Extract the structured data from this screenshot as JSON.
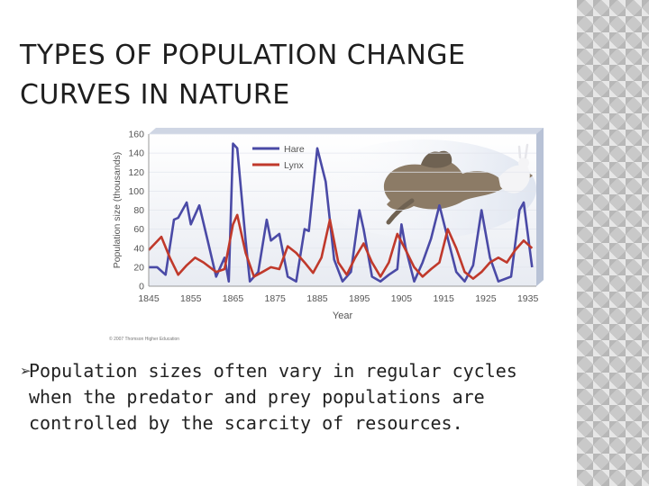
{
  "slide": {
    "title_line1": "TYPES OF POPULATION CHANGE",
    "title_line2": "CURVES IN NATURE",
    "bullet_marker": "➢",
    "bullet_text": "Population sizes often vary in regular cycles when the predator and prey populations are controlled by the scarcity of resources."
  },
  "image_icons": [
    "lynx-chasing-hare-illustration"
  ],
  "chart_data": {
    "type": "line",
    "ylabel": "Population size (thousands)",
    "xlabel": "Year",
    "copyright": "© 2007 Thomson Higher Education",
    "xlim": [
      1845,
      1937
    ],
    "ylim": [
      0,
      160
    ],
    "x_ticks": [
      1845,
      1855,
      1865,
      1875,
      1885,
      1895,
      1905,
      1915,
      1925,
      1935
    ],
    "y_ticks": [
      0,
      20,
      40,
      60,
      80,
      100,
      120,
      140,
      160
    ],
    "legend_position": "top-center",
    "series": [
      {
        "name": "Hare",
        "color": "#4a4aa6",
        "points": [
          [
            1845,
            20
          ],
          [
            1847,
            20
          ],
          [
            1849,
            12
          ],
          [
            1851,
            70
          ],
          [
            1852,
            72
          ],
          [
            1854,
            88
          ],
          [
            1855,
            65
          ],
          [
            1857,
            85
          ],
          [
            1859,
            48
          ],
          [
            1861,
            10
          ],
          [
            1863,
            30
          ],
          [
            1864,
            5
          ],
          [
            1865,
            150
          ],
          [
            1866,
            145
          ],
          [
            1868,
            48
          ],
          [
            1869,
            5
          ],
          [
            1871,
            15
          ],
          [
            1873,
            70
          ],
          [
            1874,
            48
          ],
          [
            1876,
            55
          ],
          [
            1878,
            10
          ],
          [
            1880,
            5
          ],
          [
            1882,
            60
          ],
          [
            1883,
            58
          ],
          [
            1885,
            145
          ],
          [
            1887,
            110
          ],
          [
            1889,
            28
          ],
          [
            1891,
            5
          ],
          [
            1893,
            15
          ],
          [
            1895,
            80
          ],
          [
            1896,
            60
          ],
          [
            1898,
            10
          ],
          [
            1900,
            5
          ],
          [
            1902,
            12
          ],
          [
            1904,
            18
          ],
          [
            1905,
            65
          ],
          [
            1906,
            40
          ],
          [
            1908,
            5
          ],
          [
            1910,
            25
          ],
          [
            1912,
            50
          ],
          [
            1914,
            85
          ],
          [
            1916,
            50
          ],
          [
            1918,
            15
          ],
          [
            1920,
            5
          ],
          [
            1922,
            22
          ],
          [
            1924,
            80
          ],
          [
            1926,
            30
          ],
          [
            1928,
            5
          ],
          [
            1931,
            10
          ],
          [
            1933,
            80
          ],
          [
            1934,
            88
          ],
          [
            1936,
            20
          ]
        ]
      },
      {
        "name": "Lynx",
        "color": "#c0392b",
        "points": [
          [
            1845,
            38
          ],
          [
            1848,
            52
          ],
          [
            1850,
            30
          ],
          [
            1852,
            12
          ],
          [
            1854,
            22
          ],
          [
            1856,
            30
          ],
          [
            1858,
            25
          ],
          [
            1861,
            15
          ],
          [
            1863,
            18
          ],
          [
            1865,
            65
          ],
          [
            1866,
            75
          ],
          [
            1868,
            35
          ],
          [
            1870,
            10
          ],
          [
            1872,
            15
          ],
          [
            1874,
            20
          ],
          [
            1876,
            18
          ],
          [
            1878,
            42
          ],
          [
            1880,
            35
          ],
          [
            1882,
            25
          ],
          [
            1884,
            14
          ],
          [
            1886,
            30
          ],
          [
            1888,
            70
          ],
          [
            1890,
            25
          ],
          [
            1892,
            12
          ],
          [
            1894,
            30
          ],
          [
            1896,
            45
          ],
          [
            1898,
            25
          ],
          [
            1900,
            10
          ],
          [
            1902,
            25
          ],
          [
            1904,
            55
          ],
          [
            1906,
            38
          ],
          [
            1908,
            20
          ],
          [
            1910,
            10
          ],
          [
            1912,
            18
          ],
          [
            1914,
            25
          ],
          [
            1916,
            60
          ],
          [
            1918,
            40
          ],
          [
            1920,
            15
          ],
          [
            1922,
            8
          ],
          [
            1924,
            15
          ],
          [
            1926,
            25
          ],
          [
            1928,
            30
          ],
          [
            1930,
            25
          ],
          [
            1932,
            38
          ],
          [
            1934,
            48
          ],
          [
            1936,
            40
          ]
        ]
      }
    ]
  }
}
